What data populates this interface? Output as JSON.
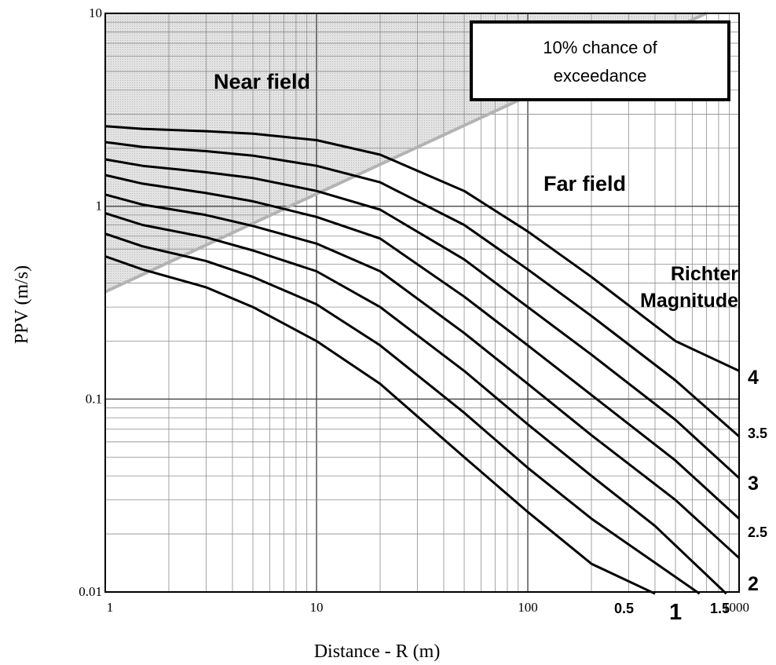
{
  "chart_data": {
    "type": "line",
    "title": "",
    "xlabel": "Distance - R (m)",
    "ylabel": "PPV (m/s)",
    "x_scale": "log",
    "y_scale": "log",
    "xlim": [
      1,
      1000
    ],
    "ylim": [
      0.01,
      10
    ],
    "x_ticks": [
      "1",
      "10",
      "100",
      "1000"
    ],
    "y_ticks": [
      "0.01",
      "0.1",
      "1",
      "10"
    ],
    "grid": true,
    "annotations": {
      "near_field": "Near field",
      "far_field": "Far field",
      "richter_line1": "Richter",
      "richter_line2": "Magnitude",
      "box_line1": "10% chance of",
      "box_line2": "exceedance"
    },
    "near_field_boundary": {
      "x": [
        1,
        1000
      ],
      "y": [
        0.36,
        12
      ]
    },
    "series": [
      {
        "name": "0.5",
        "x": [
          1,
          1.5,
          3,
          5,
          10,
          20,
          50,
          100,
          200,
          400
        ],
        "y": [
          0.55,
          0.47,
          0.38,
          0.3,
          0.2,
          0.12,
          0.05,
          0.026,
          0.014,
          0.0098
        ]
      },
      {
        "name": "1",
        "x": [
          1,
          1.5,
          3,
          5,
          10,
          20,
          50,
          100,
          200,
          650
        ],
        "y": [
          0.72,
          0.62,
          0.52,
          0.43,
          0.31,
          0.19,
          0.085,
          0.044,
          0.024,
          0.0098
        ]
      },
      {
        "name": "1.5",
        "x": [
          1,
          1.5,
          3,
          5,
          10,
          20,
          50,
          100,
          200,
          400,
          870
        ],
        "y": [
          0.92,
          0.8,
          0.69,
          0.59,
          0.46,
          0.3,
          0.14,
          0.074,
          0.04,
          0.022,
          0.0098
        ]
      },
      {
        "name": "2",
        "x": [
          1,
          1.5,
          3,
          5,
          10,
          20,
          50,
          100,
          200,
          500,
          1000
        ],
        "y": [
          1.15,
          1.02,
          0.9,
          0.79,
          0.64,
          0.46,
          0.22,
          0.12,
          0.065,
          0.03,
          0.015
        ]
      },
      {
        "name": "2.5",
        "x": [
          1,
          1.5,
          3,
          5,
          10,
          20,
          50,
          100,
          200,
          500,
          1000
        ],
        "y": [
          1.45,
          1.31,
          1.17,
          1.06,
          0.88,
          0.68,
          0.34,
          0.19,
          0.105,
          0.048,
          0.024
        ]
      },
      {
        "name": "3",
        "x": [
          1,
          1.5,
          3,
          5,
          10,
          20,
          50,
          100,
          200,
          500,
          1000
        ],
        "y": [
          1.75,
          1.62,
          1.5,
          1.4,
          1.2,
          0.96,
          0.53,
          0.3,
          0.17,
          0.078,
          0.039
        ]
      },
      {
        "name": "3.5",
        "x": [
          1,
          1.5,
          3,
          5,
          10,
          20,
          50,
          100,
          200,
          500,
          1000
        ],
        "y": [
          2.15,
          2.03,
          1.93,
          1.83,
          1.62,
          1.33,
          0.8,
          0.47,
          0.27,
          0.125,
          0.064
        ]
      },
      {
        "name": "4",
        "x": [
          1,
          1.5,
          3,
          5,
          10,
          20,
          50,
          100,
          200,
          500,
          1000
        ],
        "y": [
          2.6,
          2.52,
          2.45,
          2.38,
          2.2,
          1.85,
          1.2,
          0.74,
          0.43,
          0.2,
          0.14
        ]
      }
    ],
    "magnitude_labels": [
      "0.5",
      "1",
      "1.5",
      "2",
      "2.5",
      "3",
      "3.5",
      "4"
    ]
  }
}
